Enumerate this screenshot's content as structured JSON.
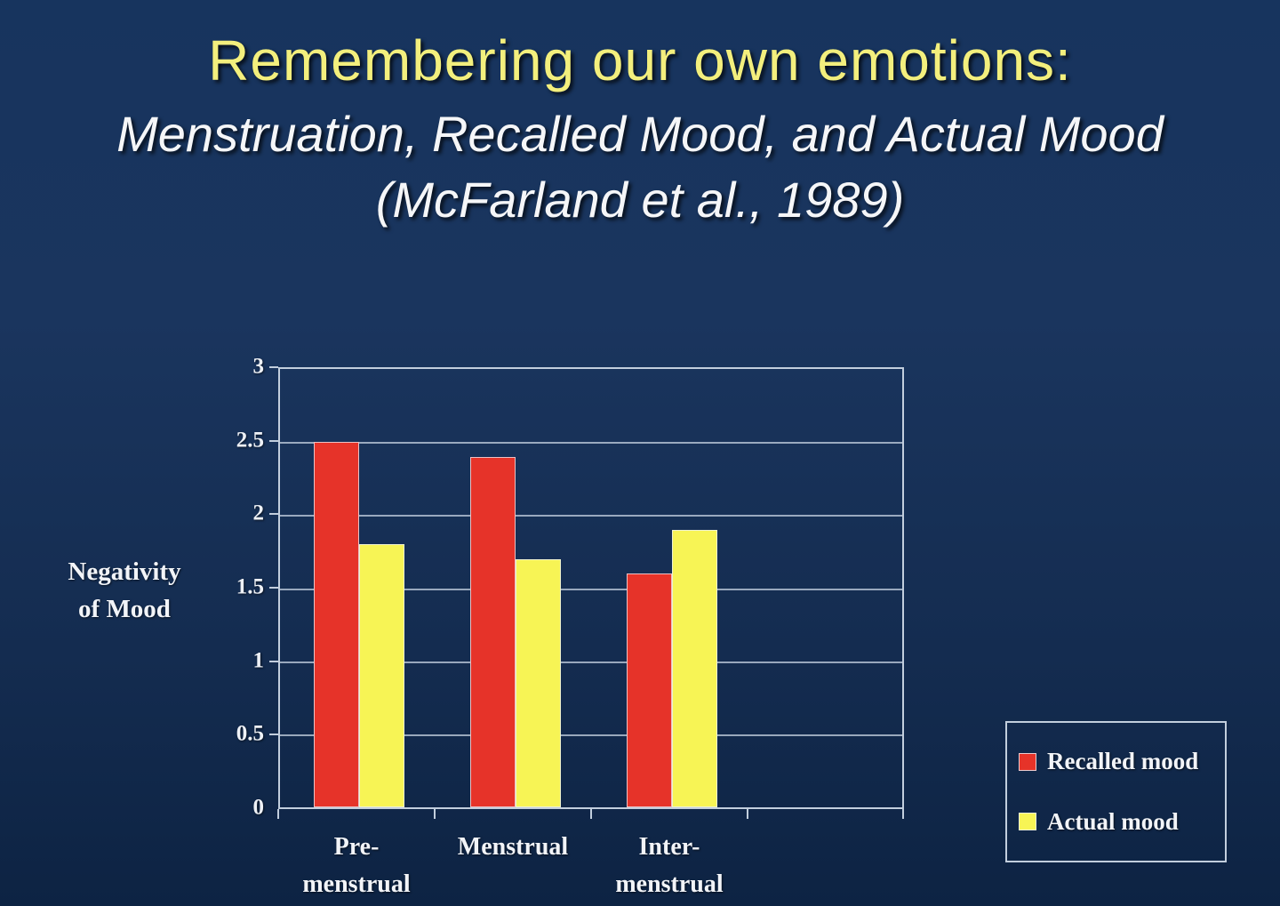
{
  "title": {
    "line1": "Remembering our own emotions:",
    "line2": "Menstruation, Recalled Mood, and Actual Mood",
    "line3": "(McFarland et al., 1989)"
  },
  "chart_data": {
    "type": "bar",
    "title": "",
    "categories": [
      "Pre-menstrual",
      "Menstrual",
      "Inter-menstrual"
    ],
    "category_label_lines": [
      {
        "l1": "Pre-",
        "l2": "menstrual"
      },
      {
        "l1": "Menstrual",
        "l2": ""
      },
      {
        "l1": "Inter-",
        "l2": "menstrual"
      }
    ],
    "series": [
      {
        "name": "Recalled mood",
        "values": [
          2.5,
          2.4,
          1.6
        ],
        "color": "#e63329"
      },
      {
        "name": "Actual mood",
        "values": [
          1.8,
          1.7,
          1.9
        ],
        "color": "#f7f455"
      }
    ],
    "xlabel": "",
    "ylabel": "Negativity of Mood",
    "ylabel_lines": {
      "l1": "Negativity",
      "l2": "of Mood"
    },
    "ylim": [
      0,
      3
    ],
    "y_ticks": [
      "3",
      "2.5",
      "2",
      "1.5",
      "1",
      "0.5",
      "0"
    ],
    "grid": true,
    "legend_position": "bottom-right",
    "colors": {
      "background_top": "#17345e",
      "background_bottom": "#0d2343",
      "gridline": "#c2cedd",
      "title_yellow": "#f3ef7d",
      "text_white": "#f2f4f8"
    }
  }
}
